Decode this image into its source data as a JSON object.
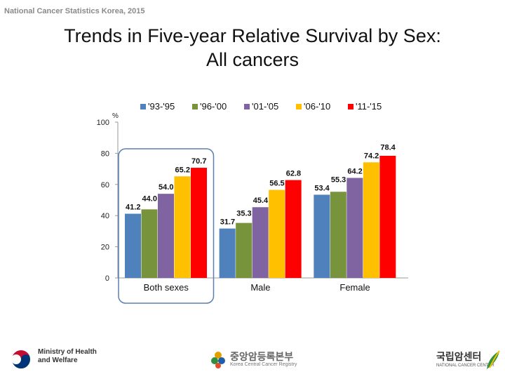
{
  "header": {
    "note": "National Cancer Statistics Korea, 2015"
  },
  "slide": {
    "title_line1": "Trends in Five-year Relative Survival by Sex:",
    "title_line2": "All cancers"
  },
  "chart_data": {
    "type": "bar",
    "title": "",
    "ylabel": "%",
    "xlabel": "",
    "ylim": [
      0,
      100
    ],
    "yticks": [
      0,
      20,
      40,
      60,
      80,
      100
    ],
    "grid": false,
    "legend_position": "top",
    "categories": [
      "Both sexes",
      "Male",
      "Female"
    ],
    "highlighted_category": "Both sexes",
    "series": [
      {
        "name": "'93-'95",
        "color": "#4f81bd",
        "values": [
          41.2,
          31.7,
          53.4
        ]
      },
      {
        "name": "'96-'00",
        "color": "#77933c",
        "values": [
          44.0,
          35.3,
          55.3
        ]
      },
      {
        "name": "'01-'05",
        "color": "#8064a2",
        "values": [
          54.0,
          45.4,
          64.2
        ]
      },
      {
        "name": "'06-'10",
        "color": "#ffc000",
        "values": [
          65.2,
          56.5,
          74.2
        ]
      },
      {
        "name": "'11-'15",
        "color": "#ff0000",
        "values": [
          70.7,
          62.8,
          78.4
        ]
      }
    ],
    "highlight_color": "#5b7fb0"
  },
  "footer": {
    "ministry_line1": "Ministry of Health",
    "ministry_line2": "and Welfare",
    "registry_kr": "중앙암등록본부",
    "registry_en": "Korea Central Cancer Registry",
    "ncc_kr": "국립암센터",
    "ncc_en": "NATIONAL CANCER CENTER"
  }
}
